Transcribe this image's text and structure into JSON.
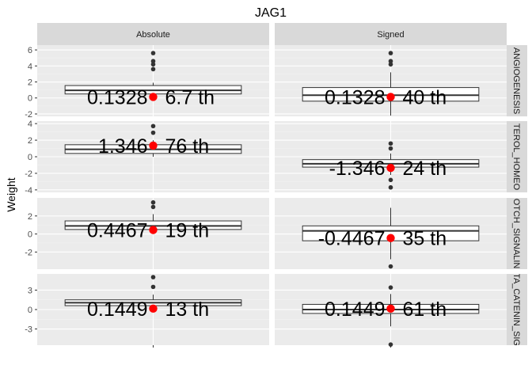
{
  "chart_data": {
    "type": "boxplot",
    "title": "JAG1",
    "ylabel": "Weight",
    "xlabel": "",
    "columns": [
      "Absolute",
      "Signed"
    ],
    "rows": [
      "ANGIOGENESIS",
      "CHOLESTEROL_HOMEOSTASIS",
      "NOTCH_SIGNALING",
      "WNT_BETA_CATENIN_SIGNALING"
    ],
    "row_strip_labels": [
      "ANGIOGENESIS",
      "TEROL_HOMEO",
      "OTCH_SIGNALIN",
      "TA_CATENIN_SIG"
    ],
    "grid": true,
    "panels": [
      {
        "row": 0,
        "col": 0,
        "ylim": [
          -2.3,
          6.6
        ],
        "yticks": [
          -2,
          0,
          2,
          4,
          6
        ],
        "box": {
          "lower_whisker": 0.0,
          "q1": 0.5,
          "median": 0.95,
          "q3": 1.55,
          "upper_whisker": 1.9
        },
        "outliers": [
          3.6,
          4.2,
          4.6,
          5.6
        ],
        "highlight": {
          "value": 0.1328,
          "label": "0.1328",
          "rank_label": "6.7 th"
        }
      },
      {
        "row": 0,
        "col": 1,
        "ylim": [
          -2.3,
          6.6
        ],
        "yticks": [
          -2,
          0,
          2,
          4,
          6
        ],
        "box": {
          "lower_whisker": -2.2,
          "q1": -0.4,
          "median": 0.35,
          "q3": 1.3,
          "upper_whisker": 3.2
        },
        "outliers": [
          4.2,
          4.6,
          5.6
        ],
        "highlight": {
          "value": 0.1328,
          "label": "0.1328",
          "rank_label": "40 th"
        }
      },
      {
        "row": 1,
        "col": 0,
        "ylim": [
          -4.3,
          4.3
        ],
        "yticks": [
          -4,
          -2,
          0,
          2,
          4
        ],
        "box": {
          "lower_whisker": 0.0,
          "q1": 0.4,
          "median": 0.9,
          "q3": 1.45,
          "upper_whisker": 2.0
        },
        "outliers": [
          2.9,
          3.7
        ],
        "highlight": {
          "value": 1.346,
          "label": "1.346",
          "rank_label": "76 th"
        }
      },
      {
        "row": 1,
        "col": 1,
        "ylim": [
          -4.3,
          4.3
        ],
        "yticks": [
          -4,
          -2,
          0,
          2,
          4
        ],
        "box": {
          "lower_whisker": -2.2,
          "q1": -1.25,
          "median": -0.85,
          "q3": -0.35,
          "upper_whisker": 0.4
        },
        "outliers": [
          -2.8,
          -3.7,
          1.0,
          1.6
        ],
        "highlight": {
          "value": -1.346,
          "label": "-1.346",
          "rank_label": "24 th"
        }
      },
      {
        "row": 2,
        "col": 0,
        "ylim": [
          -3.9,
          4.0
        ],
        "yticks": [
          -2,
          0,
          2
        ],
        "box": {
          "lower_whisker": 0.0,
          "q1": 0.5,
          "median": 0.9,
          "q3": 1.45,
          "upper_whisker": 2.2
        },
        "outliers": [
          3.0,
          3.5
        ],
        "highlight": {
          "value": 0.4467,
          "label": "0.4467",
          "rank_label": "19 th"
        }
      },
      {
        "row": 2,
        "col": 1,
        "ylim": [
          -3.9,
          4.0
        ],
        "yticks": [
          -2,
          0,
          2
        ],
        "box": {
          "lower_whisker": -2.8,
          "q1": -0.75,
          "median": 0.35,
          "q3": 0.9,
          "upper_whisker": 2.9
        },
        "outliers": [
          -3.6
        ],
        "highlight": {
          "value": -0.4467,
          "label": "-0.4467",
          "rank_label": "35 th"
        }
      },
      {
        "row": 3,
        "col": 0,
        "ylim": [
          -5.5,
          5.5
        ],
        "yticks": [
          -3,
          0,
          3
        ],
        "box": {
          "lower_whisker": 0.0,
          "q1": 0.6,
          "median": 1.05,
          "q3": 1.5,
          "upper_whisker": 2.3
        },
        "outliers": [
          3.5,
          5.0
        ],
        "highlight": {
          "value": 0.1449,
          "label": "0.1449",
          "rank_label": "13 th"
        }
      },
      {
        "row": 3,
        "col": 1,
        "ylim": [
          -5.5,
          5.5
        ],
        "yticks": [
          -3,
          0,
          3
        ],
        "box": {
          "lower_whisker": -2.6,
          "q1": -0.6,
          "median": 0.0,
          "q3": 0.8,
          "upper_whisker": 2.4
        },
        "outliers": [
          3.4,
          -5.4
        ],
        "highlight": {
          "value": 0.1449,
          "label": "0.1449",
          "rank_label": "61 th"
        }
      }
    ],
    "colors": {
      "panel_bg": "#ebebeb",
      "grid_major": "#ffffff",
      "grid_minor": "#f2f2f2",
      "strip_bg": "#d9d9d9",
      "box_fill": "#ffffff",
      "box_line": "#333333",
      "outlier": "#333333",
      "highlight": "#ff0000",
      "tick": "#333333"
    }
  }
}
